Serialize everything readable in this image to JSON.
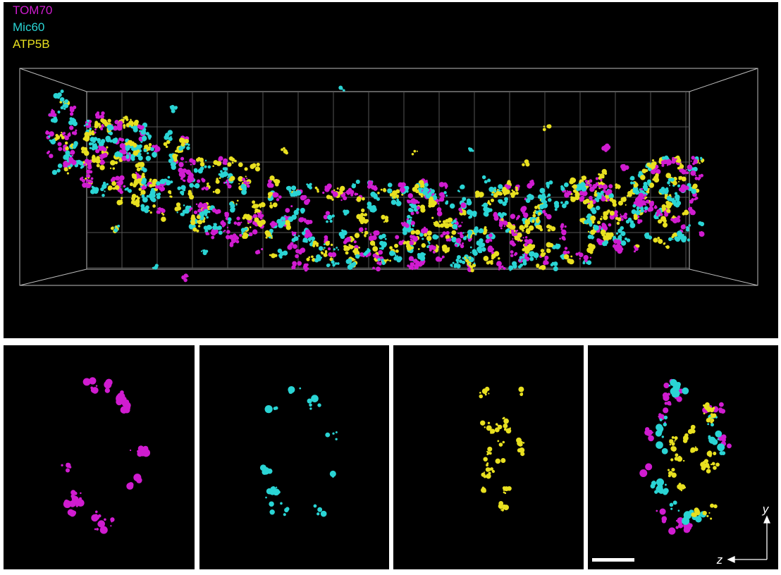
{
  "legend": [
    {
      "label": "TOM70"
    },
    {
      "label": "Mic60"
    },
    {
      "label": "ATP5B"
    }
  ],
  "axes": {
    "vertical": "y",
    "horizontal": "z"
  }
}
